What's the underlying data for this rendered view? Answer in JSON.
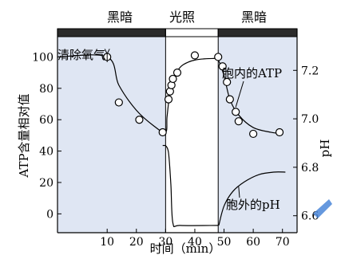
{
  "chart_data": {
    "type": "line",
    "title": "",
    "xlabel": "时间（min）",
    "ylabel_left": "ATP含量相对值",
    "ylabel_right": "pH",
    "xlim": [
      -7,
      75
    ],
    "xticks": [
      10,
      20,
      30,
      40,
      50,
      60,
      70
    ],
    "ylim_left": [
      -12,
      118
    ],
    "yticks_left": [
      0,
      20,
      40,
      60,
      80,
      100
    ],
    "ylim_right": [
      6.53,
      7.372
    ],
    "yticks_right": [
      6.6,
      6.8,
      7.0,
      7.2
    ],
    "phases": [
      {
        "label": "黑暗",
        "start": -7,
        "end": 30,
        "shade": "dark"
      },
      {
        "label": "光照",
        "start": 30,
        "end": 48,
        "shade": "light"
      },
      {
        "label": "黑暗",
        "start": 48,
        "end": 75,
        "shade": "dark"
      }
    ],
    "annotations": {
      "remove_oxygen": "清除氧气",
      "atp_label": "胞内的ATP",
      "ph_label": "胞外的pH"
    },
    "series": [
      {
        "name": "胞内的ATP",
        "axis": "left",
        "points_x": [
          10,
          14,
          21,
          29,
          31,
          31.5,
          32,
          32.5,
          34,
          40,
          48,
          49.5,
          51,
          52,
          54,
          55,
          60,
          69
        ],
        "points_y": [
          100,
          71,
          60,
          52,
          73,
          78,
          82,
          86,
          90,
          101,
          100,
          94,
          84,
          73,
          65,
          59,
          51,
          52
        ],
        "curve_x": [
          -7,
          10,
          14,
          20,
          26,
          30,
          30.5,
          31.5,
          32.5,
          34,
          36,
          40,
          46,
          48,
          50,
          52,
          55,
          60,
          66,
          70
        ],
        "curve_y": [
          100,
          100,
          82,
          66,
          56,
          52,
          62,
          78,
          86,
          91,
          95,
          98,
          99,
          98,
          88,
          73,
          63,
          55,
          52,
          51
        ]
      },
      {
        "name": "胞外的pH",
        "axis": "right",
        "curve_x": [
          30,
          31,
          31.8,
          32.5,
          35,
          48
        ],
        "curve_y": [
          6.89,
          6.86,
          6.73,
          6.57,
          6.56,
          6.56
        ],
        "curve2_x": [
          48.2,
          50,
          53,
          57,
          62,
          67,
          71
        ],
        "curve2_y": [
          6.56,
          6.64,
          6.7,
          6.74,
          6.77,
          6.78,
          6.78
        ]
      }
    ],
    "colors": {
      "dark_phase_bar": "#2b2b2b",
      "dark_phase_bg": "#dfe6f3",
      "light_phase_bg": "#ffffff",
      "watermark": "#4a86d8"
    }
  }
}
